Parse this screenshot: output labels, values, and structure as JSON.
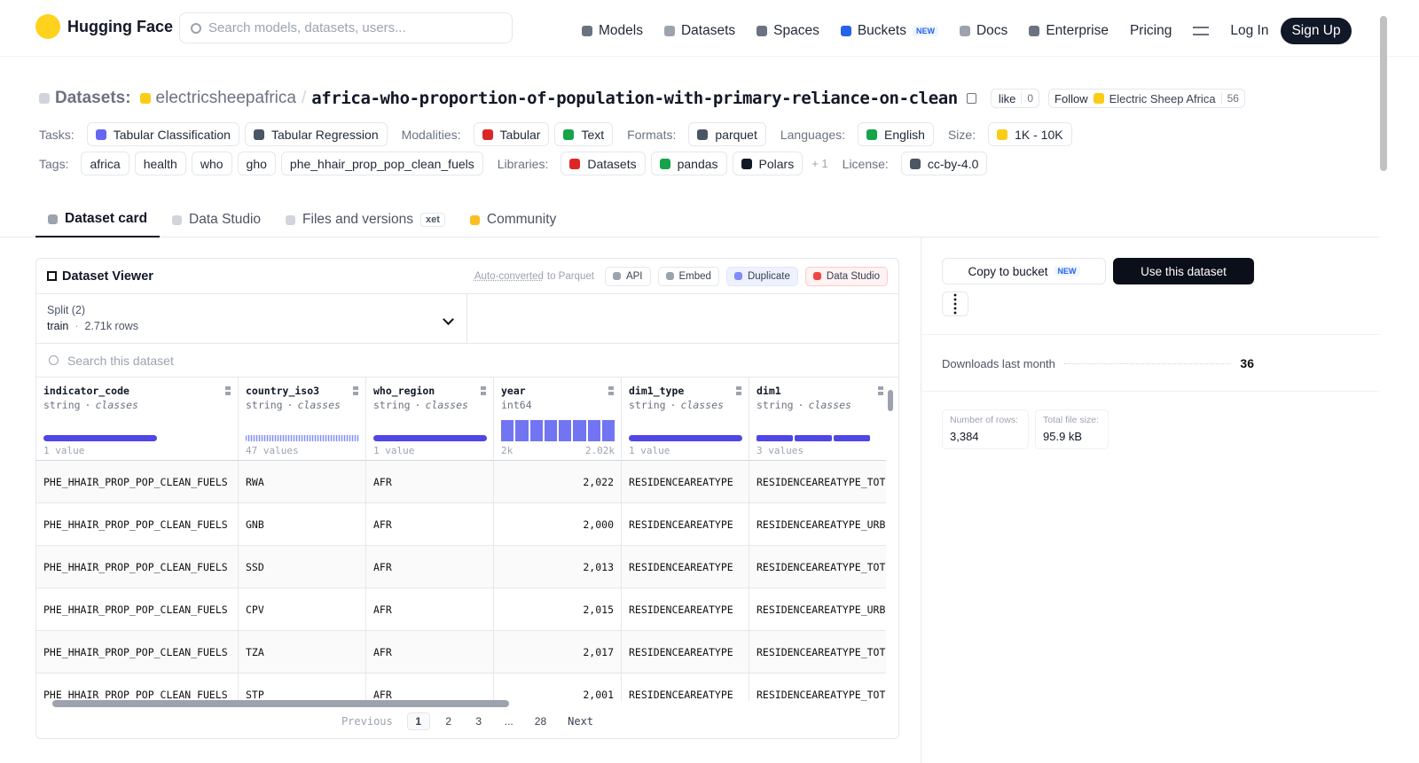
{
  "nav": {
    "brand": "Hugging Face",
    "search": "Search models, datasets, users...",
    "links": [
      "Models",
      "Datasets",
      "Spaces",
      "Buckets",
      "Docs",
      "Enterprise",
      "Pricing"
    ],
    "new_badge": "NEW",
    "login": "Log In",
    "signup": "Sign Up"
  },
  "header": {
    "prefix": "Datasets:",
    "owner": "electricsheepafrica",
    "separator": "/",
    "name": "africa-who-proportion-of-population-with-primary-reliance-on-clean",
    "like": "like",
    "likes": 0,
    "follow": "Follow",
    "org": "Electric Sheep Africa",
    "followers": 56
  },
  "meta_rows": [
    [
      {
        "label": "Tasks:",
        "items": [
          "Tabular Classification",
          "Tabular Regression"
        ]
      },
      {
        "label": "Modalities:",
        "items": [
          "Tabular",
          "Text"
        ]
      },
      {
        "label": "Formats:",
        "items": [
          "parquet"
        ]
      },
      {
        "label": "Languages:",
        "items": [
          "English"
        ]
      },
      {
        "label": "Size:",
        "items": [
          "1K - 10K"
        ]
      }
    ],
    [
      {
        "label": "Tags:",
        "items": [
          "africa",
          "health",
          "who",
          "gho",
          "phe_hhair_prop_pop_clean_fuels"
        ]
      },
      {
        "label": "Libraries:",
        "items": [
          "Datasets",
          "pandas",
          "Polars"
        ],
        "more": "+ 1"
      },
      {
        "label": "License:",
        "items": [
          "cc-by-4.0"
        ]
      }
    ]
  ],
  "tabs": {
    "items": [
      "Dataset card",
      "Data Studio",
      "Files and versions",
      "Community"
    ],
    "xet": "xet"
  },
  "viewer": {
    "title": "Dataset Viewer",
    "auto": "Auto-converted",
    "auto_suffix": "to Parquet",
    "buttons": [
      "API",
      "Embed",
      "Duplicate",
      "Data Studio"
    ],
    "split_label": "Split (2)",
    "split": "train",
    "separator": "·",
    "split_rows": "2.71k rows",
    "search": "Search this dataset",
    "columns": [
      {
        "name": "indicator_code",
        "type": "string",
        "kind": "classes",
        "stat": "1 value"
      },
      {
        "name": "country_iso3",
        "type": "string",
        "kind": "classes",
        "stat": "47 values"
      },
      {
        "name": "who_region",
        "type": "string",
        "kind": "classes",
        "stat": "1 value"
      },
      {
        "name": "year",
        "type": "int64",
        "range": [
          "2k",
          "2.02k"
        ]
      },
      {
        "name": "dim1_type",
        "type": "string",
        "kind": "classes",
        "stat": "1 value"
      },
      {
        "name": "dim1",
        "type": "string",
        "kind": "classes",
        "stat": "3 values"
      }
    ],
    "rows": [
      [
        "PHE_HHAIR_PROP_POP_CLEAN_FUELS",
        "RWA",
        "AFR",
        "2,022",
        "RESIDENCEAREATYPE",
        "RESIDENCEAREATYPE_TOT"
      ],
      [
        "PHE_HHAIR_PROP_POP_CLEAN_FUELS",
        "GNB",
        "AFR",
        "2,000",
        "RESIDENCEAREATYPE",
        "RESIDENCEAREATYPE_URB"
      ],
      [
        "PHE_HHAIR_PROP_POP_CLEAN_FUELS",
        "SSD",
        "AFR",
        "2,013",
        "RESIDENCEAREATYPE",
        "RESIDENCEAREATYPE_TOT"
      ],
      [
        "PHE_HHAIR_PROP_POP_CLEAN_FUELS",
        "CPV",
        "AFR",
        "2,015",
        "RESIDENCEAREATYPE",
        "RESIDENCEAREATYPE_URB"
      ],
      [
        "PHE_HHAIR_PROP_POP_CLEAN_FUELS",
        "TZA",
        "AFR",
        "2,017",
        "RESIDENCEAREATYPE",
        "RESIDENCEAREATYPE_TOT"
      ],
      [
        "PHE_HHAIR_PROP_POP_CLEAN_FUELS",
        "STP",
        "AFR",
        "2,001",
        "RESIDENCEAREATYPE",
        "RESIDENCEAREATYPE_TOT"
      ]
    ],
    "pagination": {
      "previous": "Previous",
      "pages": [
        "1",
        "2",
        "3",
        "...",
        "28"
      ],
      "next": "Next"
    }
  },
  "sidebar": {
    "copy": "Copy to bucket",
    "new_badge": "NEW",
    "use": "Use this dataset",
    "downloads_label": "Downloads last month",
    "downloads": 36,
    "rows_label": "Number of rows:",
    "rows": "3,384",
    "size_label": "Total file size:",
    "size": "95.9 kB"
  }
}
